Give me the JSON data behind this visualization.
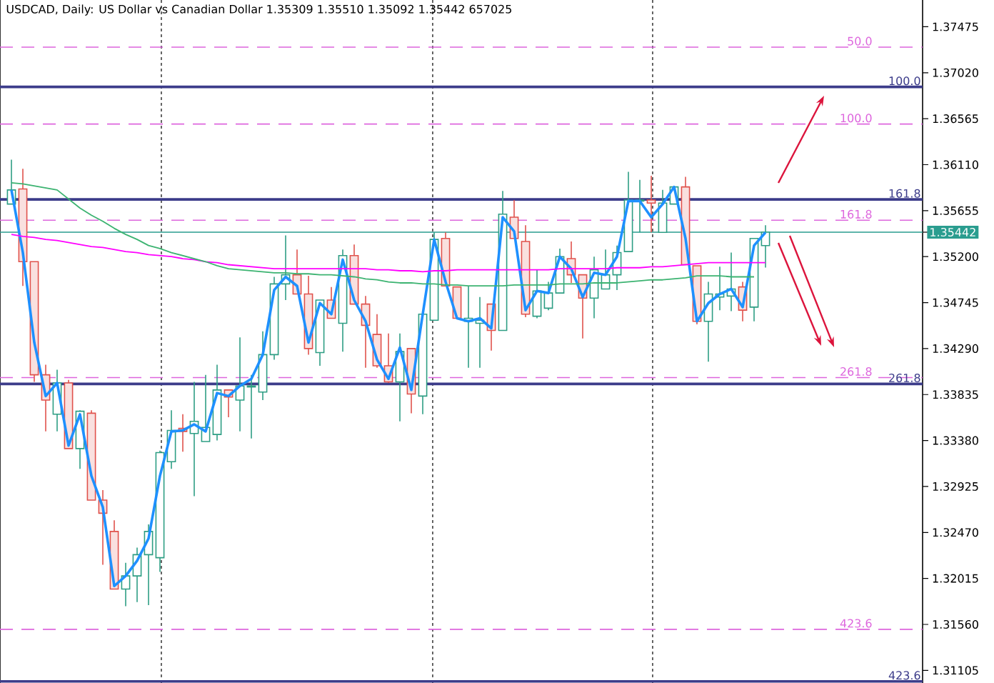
{
  "chart_data": {
    "type": "candlestick",
    "title": "USDCAD, Daily:  US Dollar vs Canadian Dollar  1.35309 1.35510 1.35092 1.35442  657025",
    "categories": [
      null,
      null,
      null,
      null,
      null,
      null,
      null,
      null,
      null,
      null,
      null,
      null,
      null,
      null,
      null,
      null,
      null,
      null,
      null,
      null,
      null,
      null,
      null,
      null,
      null,
      null,
      null,
      null,
      null,
      null,
      null,
      null,
      null,
      null,
      null,
      null,
      null,
      null,
      null,
      null,
      null,
      null,
      null,
      null,
      null,
      null,
      null,
      null,
      null,
      null,
      null,
      null,
      null,
      null,
      null,
      null,
      null,
      null,
      null,
      null,
      null,
      null,
      null,
      null,
      null,
      null,
      null
    ],
    "ohlc": [
      [
        1.3572,
        1.3616,
        1.3572,
        1.3586
      ],
      [
        1.3587,
        1.3607,
        1.3491,
        1.3515
      ],
      [
        1.3515,
        1.3515,
        1.3396,
        1.3403
      ],
      [
        1.3403,
        1.3413,
        1.3347,
        1.3378
      ],
      [
        1.3364,
        1.3408,
        1.3347,
        1.3395
      ],
      [
        1.3395,
        1.3398,
        1.333,
        1.333
      ],
      [
        1.333,
        1.3368,
        1.331,
        1.3367
      ],
      [
        1.3365,
        1.3368,
        1.3279,
        1.3279
      ],
      [
        1.3279,
        1.3289,
        1.3215,
        1.3266
      ],
      [
        1.3248,
        1.3259,
        1.3191,
        1.3191
      ],
      [
        1.3191,
        1.3217,
        1.3174,
        1.3204
      ],
      [
        1.3204,
        1.3232,
        1.3178,
        1.3225
      ],
      [
        1.3225,
        1.3255,
        1.3175,
        1.3248
      ],
      [
        1.3222,
        1.3328,
        1.3208,
        1.3326
      ],
      [
        1.3317,
        1.3368,
        1.331,
        1.3348
      ],
      [
        1.335,
        1.3364,
        1.3327,
        1.3347
      ],
      [
        1.3345,
        1.3396,
        1.3283,
        1.3357
      ],
      [
        1.3337,
        1.3403,
        1.3337,
        1.3351
      ],
      [
        1.3344,
        1.3413,
        1.3338,
        1.3388
      ],
      [
        1.3388,
        1.3388,
        1.3361,
        1.3381
      ],
      [
        1.3378,
        1.344,
        1.3347,
        1.3392
      ],
      [
        1.3391,
        1.3403,
        1.334,
        1.3392
      ],
      [
        1.3386,
        1.3446,
        1.3378,
        1.3423
      ],
      [
        1.3423,
        1.35,
        1.3418,
        1.3493
      ],
      [
        1.3493,
        1.3541,
        1.3477,
        1.3502
      ],
      [
        1.3502,
        1.3527,
        1.3483,
        1.3483
      ],
      [
        1.3483,
        1.3501,
        1.3423,
        1.3429
      ],
      [
        1.3425,
        1.3477,
        1.3412,
        1.3477
      ],
      [
        1.3477,
        1.349,
        1.3459,
        1.3459
      ],
      [
        1.3454,
        1.3527,
        1.3426,
        1.3521
      ],
      [
        1.3521,
        1.3532,
        1.3473,
        1.3473
      ],
      [
        1.3473,
        1.3481,
        1.341,
        1.3452
      ],
      [
        1.3443,
        1.3463,
        1.341,
        1.3412
      ],
      [
        1.3412,
        1.3444,
        1.3395,
        1.3396
      ],
      [
        1.3396,
        1.3444,
        1.3357,
        1.3426
      ],
      [
        1.3429,
        1.3429,
        1.3365,
        1.3384
      ],
      [
        1.3382,
        1.3463,
        1.3364,
        1.3463
      ],
      [
        1.3457,
        1.3544,
        1.3457,
        1.3537
      ],
      [
        1.3538,
        1.3544,
        1.3491,
        1.3491
      ],
      [
        1.349,
        1.349,
        1.3459,
        1.3459
      ],
      [
        1.3456,
        1.3491,
        1.341,
        1.3459
      ],
      [
        1.3454,
        1.348,
        1.341,
        1.3457
      ],
      [
        1.3473,
        1.3473,
        1.3427,
        1.3447
      ],
      [
        1.3447,
        1.3585,
        1.3447,
        1.3562
      ],
      [
        1.3559,
        1.3576,
        1.3538,
        1.3538
      ],
      [
        1.3535,
        1.3551,
        1.346,
        1.3463
      ],
      [
        1.3461,
        1.3507,
        1.3459,
        1.3486
      ],
      [
        1.3469,
        1.3495,
        1.3467,
        1.3484
      ],
      [
        1.3484,
        1.3528,
        1.3484,
        1.352
      ],
      [
        1.3518,
        1.3535,
        1.3494,
        1.3502
      ],
      [
        1.3502,
        1.3502,
        1.3439,
        1.3479
      ],
      [
        1.3479,
        1.352,
        1.3459,
        1.3507
      ],
      [
        1.3488,
        1.3527,
        1.3488,
        1.3502
      ],
      [
        1.3502,
        1.3531,
        1.3487,
        1.3524
      ],
      [
        1.3525,
        1.3604,
        1.3525,
        1.3576
      ],
      [
        1.3575,
        1.3596,
        1.3544,
        1.3576
      ],
      [
        1.3576,
        1.36,
        1.3544,
        1.3573
      ],
      [
        1.3544,
        1.3586,
        1.3544,
        1.3573
      ],
      [
        1.3572,
        1.359,
        1.3572,
        1.3589
      ],
      [
        1.3589,
        1.3599,
        1.3512,
        1.3512
      ],
      [
        1.3511,
        1.3511,
        1.3453,
        1.3456
      ],
      [
        1.3456,
        1.3495,
        1.3416,
        1.3483
      ],
      [
        1.348,
        1.351,
        1.3467,
        1.3483
      ],
      [
        1.3481,
        1.3524,
        1.3466,
        1.3488
      ],
      [
        1.349,
        1.3495,
        1.3456,
        1.3467
      ],
      [
        1.347,
        1.3538,
        1.3456,
        1.3538
      ],
      [
        1.35309,
        1.3551,
        1.35092,
        1.35442
      ]
    ],
    "colors": [
      "#2e9e84",
      "#e0524c",
      "#e0524c",
      "#e0524c",
      "#2e9e84",
      "#e0524c",
      "#2e9e84",
      "#e0524c",
      "#e0524c",
      "#e0524c",
      "#2e9e84",
      "#2e9e84",
      "#2e9e84",
      "#2e9e84",
      "#2e9e84",
      "#e0524c",
      "#2e9e84",
      "#2e9e84",
      "#2e9e84",
      "#e0524c",
      "#2e9e84",
      "#2e9e84",
      "#2e9e84",
      "#2e9e84",
      "#2e9e84",
      "#e0524c",
      "#e0524c",
      "#2e9e84",
      "#e0524c",
      "#2e9e84",
      "#e0524c",
      "#e0524c",
      "#e0524c",
      "#e0524c",
      "#2e9e84",
      "#e0524c",
      "#2e9e84",
      "#2e9e84",
      "#e0524c",
      "#e0524c",
      "#2e9e84",
      "#2e9e84",
      "#e0524c",
      "#2e9e84",
      "#e0524c",
      "#e0524c",
      "#2e9e84",
      "#2e9e84",
      "#2e9e84",
      "#e0524c",
      "#e0524c",
      "#2e9e84",
      "#2e9e84",
      "#2e9e84",
      "#2e9e84",
      "#2e9e84",
      "#e0524c",
      "#2e9e84",
      "#2e9e84",
      "#e0524c",
      "#e0524c",
      "#2e9e84",
      "#2e9e84",
      "#2e9e84",
      "#e0524c",
      "#2e9e84",
      "#2e9e84"
    ],
    "series": [
      {
        "type": "line",
        "color": "#1e90ff",
        "values": [
          1.3586,
          1.3524,
          1.3435,
          1.3382,
          1.3395,
          1.3333,
          1.3364,
          1.3303,
          1.3272,
          1.3194,
          1.3204,
          1.3219,
          1.3241,
          1.3303,
          1.3347,
          1.3348,
          1.3354,
          1.3347,
          1.3385,
          1.3382,
          1.3392,
          1.3399,
          1.3423,
          1.3487,
          1.35,
          1.3491,
          1.3435,
          1.3474,
          1.3463,
          1.3517,
          1.3477,
          1.3456,
          1.3418,
          1.3399,
          1.343,
          1.3388,
          1.3463,
          1.3537,
          1.3495,
          1.3459,
          1.3456,
          1.3459,
          1.3449,
          1.3559,
          1.3545,
          1.3467,
          1.3486,
          1.3484,
          1.352,
          1.3508,
          1.348,
          1.3504,
          1.3502,
          1.352,
          1.3575,
          1.3575,
          1.3559,
          1.3572,
          1.3589,
          1.3538,
          1.3456,
          1.3474,
          1.3483,
          1.3488,
          1.347,
          1.3531,
          1.3544
        ]
      },
      {
        "type": "line",
        "color": "#ff00ff",
        "values": [
          1.3542,
          1.354,
          1.3539,
          1.3537,
          1.3536,
          1.3534,
          1.3532,
          1.353,
          1.3529,
          1.3527,
          1.3525,
          1.3524,
          1.3522,
          1.3521,
          1.352,
          1.3518,
          1.3517,
          1.3515,
          1.3514,
          1.3512,
          1.3511,
          1.351,
          1.3509,
          1.3508,
          1.3508,
          1.3508,
          1.3508,
          1.3508,
          1.3508,
          1.3508,
          1.3508,
          1.3508,
          1.3507,
          1.3507,
          1.3506,
          1.3506,
          1.3505,
          1.3506,
          1.3506,
          1.3507,
          1.3507,
          1.3507,
          1.3507,
          1.3507,
          1.3507,
          1.3507,
          1.3507,
          1.3507,
          1.3508,
          1.3508,
          1.3508,
          1.3508,
          1.3508,
          1.3509,
          1.3509,
          1.3509,
          1.351,
          1.351,
          1.3511,
          1.3512,
          1.3513,
          1.3514,
          1.3514,
          1.3514,
          1.3514,
          1.3514,
          1.3514
        ]
      },
      {
        "type": "line",
        "color": "#3cb371",
        "values": [
          1.3593,
          1.3592,
          1.359,
          1.3588,
          1.3586,
          1.3577,
          1.3568,
          1.3561,
          1.3555,
          1.3548,
          1.3542,
          1.3537,
          1.3531,
          1.3528,
          1.3524,
          1.3521,
          1.3518,
          1.3515,
          1.3511,
          1.3508,
          1.3507,
          1.3506,
          1.3505,
          1.3504,
          1.3504,
          1.3503,
          1.3503,
          1.3502,
          1.3502,
          1.3501,
          1.35,
          1.3498,
          1.3497,
          1.3495,
          1.3494,
          1.3494,
          1.3493,
          1.3493,
          1.3492,
          1.3492,
          1.3491,
          1.3491,
          1.3491,
          1.3491,
          1.3492,
          1.3492,
          1.3492,
          1.3492,
          1.3493,
          1.3493,
          1.3493,
          1.3494,
          1.3494,
          1.3494,
          1.3495,
          1.3496,
          1.3497,
          1.3497,
          1.3498,
          1.3499,
          1.3501,
          1.3501,
          1.3501,
          1.35,
          1.35,
          1.35,
          null
        ]
      }
    ],
    "ylim": [
      1.3098,
      1.3774
    ],
    "yticks": [
      {
        "value": 1.37475,
        "label": "1.37475"
      },
      {
        "value": 1.3702,
        "label": "1.37020"
      },
      {
        "value": 1.36565,
        "label": "1.36565"
      },
      {
        "value": 1.3611,
        "label": "1.36110"
      },
      {
        "value": 1.35655,
        "label": "1.35655"
      },
      {
        "value": 1.35442,
        "label": "1.35442"
      },
      {
        "value": 1.352,
        "label": "1.35200"
      },
      {
        "value": 1.34745,
        "label": "1.34745"
      },
      {
        "value": 1.3429,
        "label": "1.34290"
      },
      {
        "value": 1.33835,
        "label": "1.33835"
      },
      {
        "value": 1.3338,
        "label": "1.33380"
      },
      {
        "value": 1.32925,
        "label": "1.32925"
      },
      {
        "value": 1.3247,
        "label": "1.32470"
      },
      {
        "value": 1.32015,
        "label": "1.32015"
      },
      {
        "value": 1.3156,
        "label": "1.31560"
      },
      {
        "value": 1.31105,
        "label": "1.31105"
      }
    ],
    "ref_lines": [
      {
        "axis": "y",
        "value": 1.37273,
        "color": "#dd66dd",
        "line_style": "dashed"
      },
      {
        "axis": "y",
        "value": 1.3688,
        "color": "#3c3c8a",
        "line_style": "solid"
      },
      {
        "axis": "y",
        "value": 1.36512,
        "color": "#dd66dd",
        "line_style": "dashed"
      },
      {
        "axis": "y",
        "value": 1.35766,
        "color": "#3c3c8a",
        "line_style": "solid"
      },
      {
        "axis": "y",
        "value": 1.3556,
        "color": "#dd66dd",
        "line_style": "dashed"
      },
      {
        "axis": "y",
        "value": 1.35442,
        "color": "#2a9d8f",
        "line_style": "solid"
      },
      {
        "axis": "y",
        "value": 1.34003,
        "color": "#dd66dd",
        "line_style": "dashed"
      },
      {
        "axis": "y",
        "value": 1.3394,
        "color": "#3c3c8a",
        "line_style": "solid"
      },
      {
        "axis": "y",
        "value": 1.31511,
        "color": "#dd66dd",
        "line_style": "dashed"
      },
      {
        "axis": "y",
        "value": 1.30996,
        "color": "#3c3c8a",
        "line_style": "solid"
      }
    ],
    "annotations": [
      {
        "text": "50.0",
        "y": 1.37273
      },
      {
        "text": "100.0",
        "y": 1.3688
      },
      {
        "text": "100.0",
        "y": 1.36512
      },
      {
        "text": "161.8",
        "y": 1.35766
      },
      {
        "text": "161.8",
        "y": 1.3556
      },
      {
        "text": "261.8",
        "y": 1.34003
      },
      {
        "text": "261.8",
        "y": 1.3394
      },
      {
        "text": "423.6",
        "y": 1.31511
      },
      {
        "text": "423.6",
        "y": 1.30996
      }
    ],
    "grid": "x",
    "tick_labels": "y"
  }
}
